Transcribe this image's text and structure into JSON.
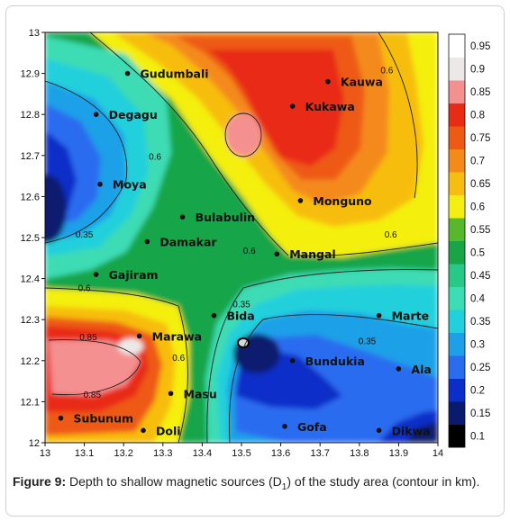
{
  "chart_data": {
    "type": "heatmap",
    "title": "",
    "xlabel": "",
    "ylabel": "",
    "xlim": [
      13,
      14
    ],
    "ylim": [
      12,
      13
    ],
    "x_ticks": [
      "13",
      "13.1",
      "13.2",
      "13.3",
      "13.4",
      "13.5",
      "13.6",
      "13.7",
      "13.8",
      "13.9",
      "14"
    ],
    "y_ticks": [
      "12",
      "12.1",
      "12.2",
      "12.3",
      "12.4",
      "12.5",
      "12.6",
      "12.7",
      "12.8",
      "12.9",
      "13"
    ],
    "colorbar": {
      "ticks": [
        "0.1",
        "0.15",
        "0.2",
        "0.25",
        "0.3",
        "0.35",
        "0.4",
        "0.45",
        "0.5",
        "0.55",
        "0.6",
        "0.65",
        "0.7",
        "0.75",
        "0.8",
        "0.85",
        "0.9",
        "0.95"
      ],
      "colors": [
        "#000000",
        "#0a1a6e",
        "#0b2ec8",
        "#2a6cf0",
        "#1ea0e8",
        "#22d0dc",
        "#3cdcb4",
        "#28c888",
        "#17a548",
        "#58b82c",
        "#f4ef10",
        "#f7bd10",
        "#f48a1a",
        "#ee5a14",
        "#e82b14",
        "#f49090",
        "#ece8e8",
        "#ffffff"
      ]
    },
    "towns": [
      {
        "name": "Gudumbali",
        "x": 13.21,
        "y": 12.9
      },
      {
        "name": "Kauwa",
        "x": 13.72,
        "y": 12.88
      },
      {
        "name": "Degagu",
        "x": 13.13,
        "y": 12.8
      },
      {
        "name": "Kukawa",
        "x": 13.63,
        "y": 12.82
      },
      {
        "name": "Moya",
        "x": 13.14,
        "y": 12.63
      },
      {
        "name": "Monguno",
        "x": 13.65,
        "y": 12.59
      },
      {
        "name": "Bulabulin",
        "x": 13.35,
        "y": 12.55
      },
      {
        "name": "Damakar",
        "x": 13.26,
        "y": 12.49
      },
      {
        "name": "Mangal",
        "x": 13.59,
        "y": 12.46
      },
      {
        "name": "Gajiram",
        "x": 13.13,
        "y": 12.41
      },
      {
        "name": "Bida",
        "x": 13.43,
        "y": 12.31
      },
      {
        "name": "Marte",
        "x": 13.85,
        "y": 12.31
      },
      {
        "name": "Marawa",
        "x": 13.24,
        "y": 12.26
      },
      {
        "name": "Bundukia",
        "x": 13.63,
        "y": 12.2
      },
      {
        "name": "Ala",
        "x": 13.9,
        "y": 12.18
      },
      {
        "name": "Masu",
        "x": 13.32,
        "y": 12.12
      },
      {
        "name": "Subunum",
        "x": 13.04,
        "y": 12.06
      },
      {
        "name": "Gofa",
        "x": 13.61,
        "y": 12.04
      },
      {
        "name": "Doli",
        "x": 13.25,
        "y": 12.03
      },
      {
        "name": "Dikwa",
        "x": 13.85,
        "y": 12.03
      }
    ],
    "contour_labels": [
      {
        "text": "0.6",
        "x": 13.87,
        "y": 12.9
      },
      {
        "text": "0.6",
        "x": 13.28,
        "y": 12.69
      },
      {
        "text": "0.35",
        "x": 13.1,
        "y": 12.5
      },
      {
        "text": "0.6",
        "x": 13.52,
        "y": 12.46
      },
      {
        "text": "0.6",
        "x": 13.88,
        "y": 12.5
      },
      {
        "text": "0.6",
        "x": 13.1,
        "y": 12.37
      },
      {
        "text": "0.35",
        "x": 13.5,
        "y": 12.33
      },
      {
        "text": "0.85",
        "x": 13.11,
        "y": 12.25
      },
      {
        "text": "0.6",
        "x": 13.34,
        "y": 12.2
      },
      {
        "text": "0.35",
        "x": 13.82,
        "y": 12.24
      },
      {
        "text": "0.85",
        "x": 13.12,
        "y": 12.11
      }
    ]
  },
  "caption": {
    "label": "Figure 9:",
    "text_before_sub": " Depth to shallow magnetic sources (D",
    "sub": "1",
    "text_after_sub": ") of the study area (contour in km)."
  }
}
